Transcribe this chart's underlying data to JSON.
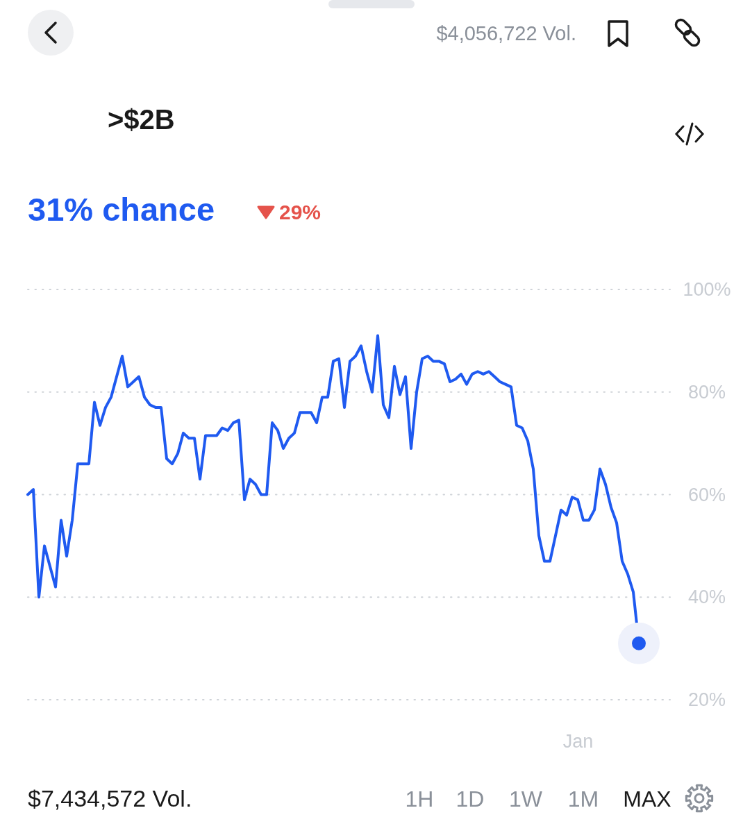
{
  "chart_data": {
    "type": "line",
    "title": ">$2B",
    "subtitle": "31% chance",
    "annotations": [
      "$4,056,722 Vol.",
      "29%",
      "$7,434,572 Vol.",
      "1H",
      "1D",
      "1W",
      "1M",
      "MAX"
    ],
    "categories": [
      null,
      null,
      null,
      null,
      null,
      null,
      null,
      null,
      null,
      null,
      null,
      null,
      null,
      null,
      null,
      null,
      null,
      null,
      null,
      null,
      null,
      null,
      null,
      null,
      null,
      null,
      null,
      null,
      null,
      null,
      null,
      null,
      null,
      null,
      null,
      null,
      null,
      null,
      null,
      null,
      null,
      null,
      null,
      null,
      null,
      null,
      null,
      null,
      null,
      null,
      null,
      null,
      null,
      null,
      null,
      null,
      null,
      null,
      null,
      null,
      null,
      null,
      null,
      null,
      null,
      null,
      null,
      null,
      null,
      null,
      null,
      null,
      null,
      null,
      null,
      null,
      null,
      null,
      null,
      null,
      null,
      null,
      null,
      null,
      null,
      null,
      null,
      null,
      null,
      null,
      null,
      null,
      null,
      null,
      null,
      null,
      null,
      null,
      null,
      "Jan",
      null,
      null,
      null,
      null,
      null,
      null,
      null,
      null,
      null,
      null,
      null
    ],
    "ylim": [
      20,
      100
    ],
    "yticks": [
      {
        "value": 20,
        "label": "20%"
      },
      {
        "value": 40,
        "label": "40%"
      },
      {
        "value": 60,
        "label": "60%"
      },
      {
        "value": 80,
        "label": "80%"
      },
      {
        "value": 100,
        "label": "100%"
      }
    ],
    "grid": "y",
    "line_style": "solid",
    "series": [
      {
        "color": "#1f5af0",
        "marker": "none",
        "values": [
          60,
          61,
          40,
          50,
          46,
          42,
          55,
          48,
          55,
          66,
          66,
          66,
          78,
          73.5,
          77,
          79,
          83,
          87,
          81,
          82,
          83,
          79,
          77.5,
          77,
          77,
          67,
          66,
          68,
          72,
          71,
          71,
          63,
          71.5,
          71.5,
          71.5,
          73,
          72.5,
          74,
          74.5,
          59,
          63,
          62,
          60,
          60,
          74,
          72.5,
          69,
          71,
          72,
          76,
          76,
          76,
          74,
          79,
          79,
          86,
          86.5,
          77,
          86,
          87,
          89,
          84,
          80,
          91,
          77.5,
          75,
          85,
          79.5,
          83,
          69,
          80,
          86.5,
          87,
          86,
          86,
          85.5,
          82,
          82.5,
          83.5,
          81.5,
          83.5,
          84,
          83.5,
          84,
          83,
          82,
          81.5,
          81,
          73.5,
          73,
          70.5,
          65,
          52,
          47,
          47,
          52,
          57,
          56,
          59.5,
          59,
          55,
          55,
          57,
          65,
          62,
          57.5,
          54.5,
          47,
          44.5,
          41,
          31
        ]
      },
      {
        "type": "scatter",
        "color": "#1f5af0",
        "marker": "circle",
        "values": [
          null,
          null,
          null,
          null,
          null,
          null,
          null,
          null,
          null,
          null,
          null,
          null,
          null,
          null,
          null,
          null,
          null,
          null,
          null,
          null,
          null,
          null,
          null,
          null,
          null,
          null,
          null,
          null,
          null,
          null,
          null,
          null,
          null,
          null,
          null,
          null,
          null,
          null,
          null,
          null,
          null,
          null,
          null,
          null,
          null,
          null,
          null,
          null,
          null,
          null,
          null,
          null,
          null,
          null,
          null,
          null,
          null,
          null,
          null,
          null,
          null,
          null,
          null,
          null,
          null,
          null,
          null,
          null,
          null,
          null,
          null,
          null,
          null,
          null,
          null,
          null,
          null,
          null,
          null,
          null,
          null,
          null,
          null,
          null,
          null,
          null,
          null,
          null,
          null,
          null,
          null,
          null,
          null,
          null,
          null,
          null,
          null,
          null,
          null,
          null,
          null,
          null,
          null,
          null,
          null,
          null,
          null,
          null,
          null,
          null,
          31
        ]
      }
    ]
  }
}
